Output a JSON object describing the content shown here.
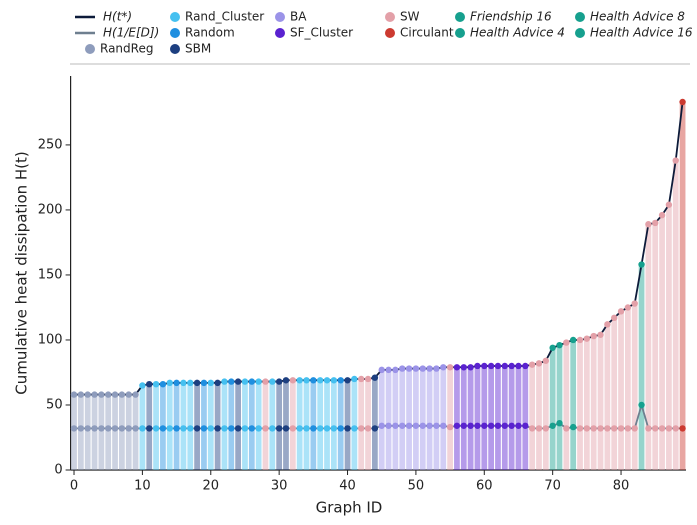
{
  "chart_data": {
    "type": "bar-line",
    "xlabel": "Graph ID",
    "ylabel": "Cumulative  heat dissipation  H(t)",
    "x": [
      0,
      1,
      2,
      3,
      4,
      5,
      6,
      7,
      8,
      9,
      10,
      11,
      12,
      13,
      14,
      15,
      16,
      17,
      18,
      19,
      20,
      21,
      22,
      23,
      24,
      25,
      26,
      27,
      28,
      29,
      30,
      31,
      32,
      33,
      34,
      35,
      36,
      37,
      38,
      39,
      40,
      41,
      42,
      43,
      44,
      45,
      46,
      47,
      48,
      49,
      50,
      51,
      52,
      53,
      54,
      55,
      56,
      57,
      58,
      59,
      60,
      61,
      62,
      63,
      64,
      65,
      66,
      67,
      68,
      69,
      70,
      71,
      72,
      73,
      74,
      75,
      76,
      77,
      78,
      79,
      80,
      81,
      82,
      83,
      84,
      85,
      86,
      87,
      88,
      89
    ],
    "series": [
      {
        "name": "H(t*)",
        "color": "#0d1b3a",
        "values": [
          58,
          58,
          58,
          58,
          58,
          58,
          58,
          58,
          58,
          58,
          65,
          66,
          66,
          66,
          67,
          67,
          67,
          67,
          67,
          67,
          67,
          67,
          68,
          68,
          68,
          68,
          68,
          68,
          68,
          68,
          68,
          69,
          69,
          69,
          69,
          69,
          69,
          69,
          69,
          69,
          69,
          70,
          70,
          70,
          71,
          77,
          77,
          77,
          78,
          78,
          78,
          78,
          78,
          78,
          79,
          79,
          79,
          79,
          79,
          80,
          80,
          80,
          80,
          80,
          80,
          80,
          80,
          81,
          82,
          84,
          94,
          96,
          98,
          100,
          100,
          101,
          103,
          104,
          112,
          117,
          122,
          125,
          128,
          158,
          189,
          190,
          196,
          204,
          238,
          283
        ]
      },
      {
        "name": "H(1/E[D])",
        "color": "#6e7f8f",
        "values": [
          32,
          32,
          32,
          32,
          32,
          32,
          32,
          32,
          32,
          32,
          32,
          32,
          32,
          32,
          32,
          32,
          32,
          32,
          32,
          32,
          32,
          32,
          32,
          32,
          32,
          32,
          32,
          32,
          32,
          32,
          32,
          32,
          32,
          32,
          32,
          32,
          32,
          32,
          32,
          32,
          32,
          32,
          32,
          32,
          32,
          34,
          34,
          34,
          34,
          34,
          34,
          34,
          34,
          34,
          34,
          33,
          34,
          34,
          34,
          34,
          34,
          34,
          34,
          34,
          34,
          34,
          34,
          32,
          32,
          32,
          34,
          36,
          32,
          33,
          32,
          32,
          32,
          32,
          32,
          32,
          32,
          32,
          32,
          50,
          32,
          32,
          32,
          32,
          32,
          32
        ]
      }
    ],
    "groups": [
      {
        "name": "RandReg",
        "color": "#8e9cbc",
        "members": [
          0,
          1,
          2,
          3,
          4,
          5,
          6,
          7,
          8,
          9
        ]
      },
      {
        "name": "Rand_Cluster",
        "color": "#45c0f0",
        "members": [
          10,
          12,
          14,
          16,
          17,
          20,
          22,
          25,
          27,
          29,
          33,
          34,
          36,
          37,
          38,
          41
        ]
      },
      {
        "name": "Random",
        "color": "#1f8fe0",
        "members": [
          13,
          15,
          19,
          23,
          26,
          35,
          39
        ]
      },
      {
        "name": "SBM",
        "color": "#1d3f80",
        "members": [
          11,
          18,
          21,
          24,
          30,
          31,
          40,
          44
        ]
      },
      {
        "name": "BA",
        "color": "#9b93e8",
        "members": [
          45,
          46,
          47,
          48,
          49,
          50,
          51,
          52,
          53,
          54
        ]
      },
      {
        "name": "SF_Cluster",
        "color": "#5a22d0",
        "members": [
          56,
          57,
          58,
          59,
          60,
          61,
          62,
          63,
          64,
          65,
          66
        ]
      },
      {
        "name": "SW",
        "color": "#e3a0a8",
        "members": [
          28,
          32,
          42,
          43,
          55,
          67,
          68,
          69,
          72,
          74,
          75,
          76,
          77,
          78,
          79,
          80,
          81,
          82,
          84,
          85,
          86,
          87,
          88
        ]
      },
      {
        "name": "Circulant",
        "color": "#cc3a30",
        "members": [
          89
        ]
      },
      {
        "name": "Friendship 16",
        "color": "#16a08e",
        "members": [
          70
        ]
      },
      {
        "name": "Health Advice 4",
        "color": "#16a08e",
        "members": [
          71
        ]
      },
      {
        "name": "Health Advice 8",
        "color": "#16a08e",
        "members": [
          73
        ]
      },
      {
        "name": "Health Advice 16",
        "color": "#16a08e",
        "members": [
          83
        ]
      }
    ],
    "xlim": [
      -0.5,
      89.5
    ],
    "xticks": [
      0,
      10,
      20,
      30,
      40,
      50,
      60,
      70,
      80
    ],
    "ylim": [
      0,
      303
    ],
    "yticks": [
      0,
      50,
      100,
      150,
      200,
      250
    ],
    "grid": false
  }
}
